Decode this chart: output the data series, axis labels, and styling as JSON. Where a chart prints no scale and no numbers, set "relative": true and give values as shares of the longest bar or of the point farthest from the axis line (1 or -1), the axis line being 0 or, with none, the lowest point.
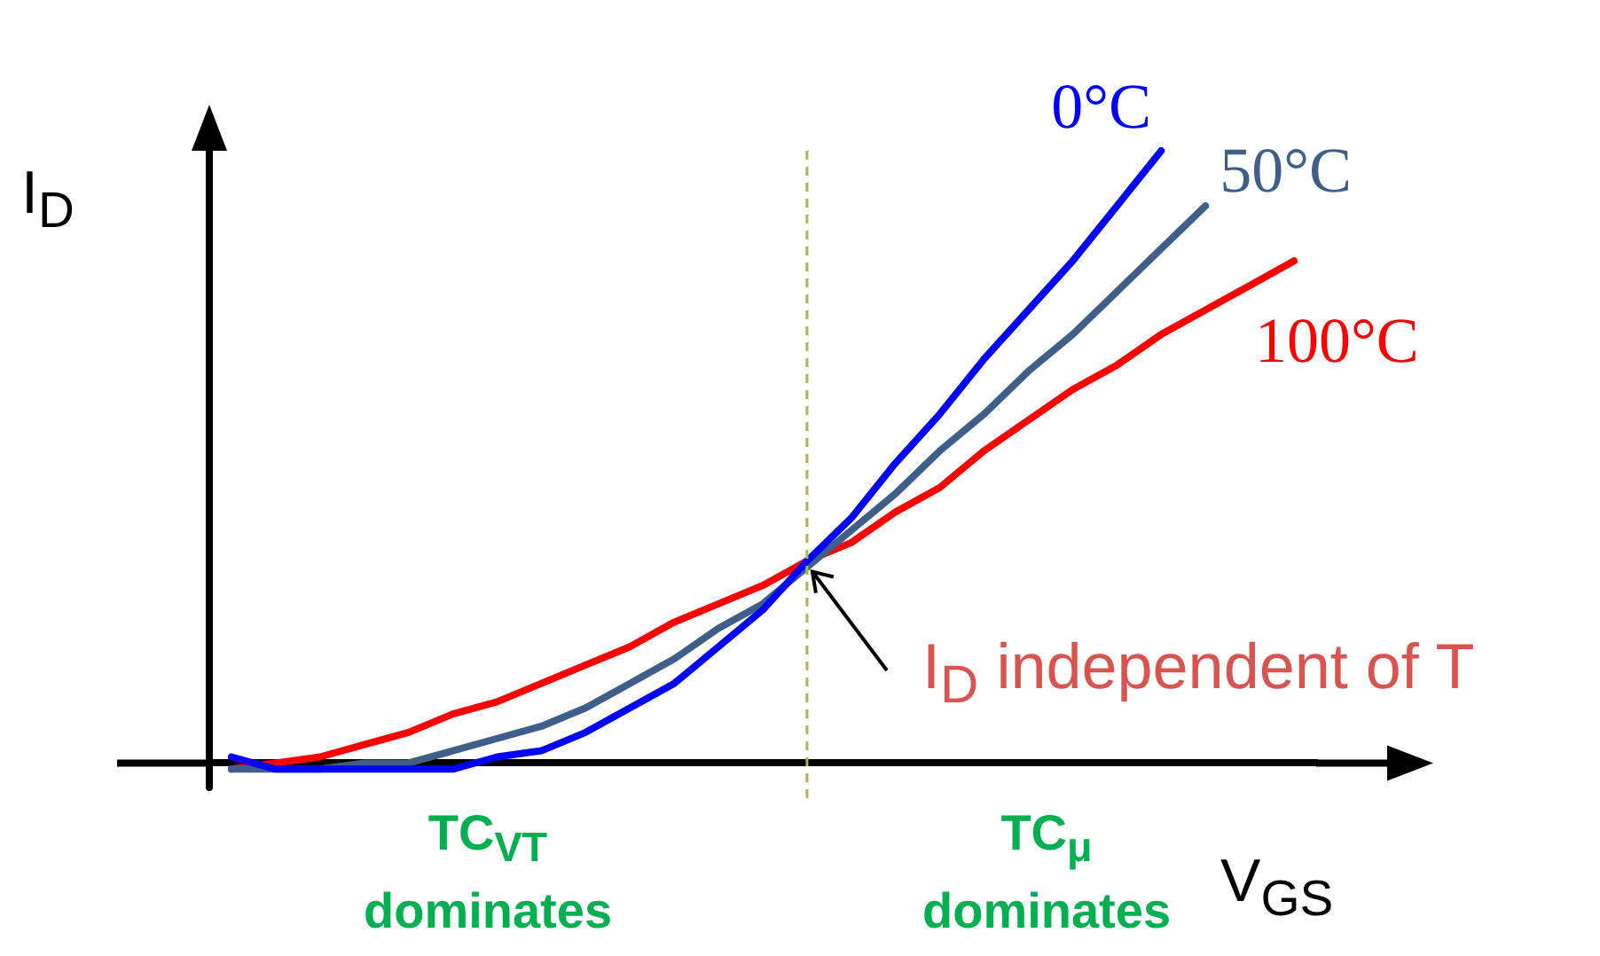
{
  "chart_data": {
    "type": "line",
    "relative": true,
    "xlabel": "V$_{GS}$",
    "ylabel": "I$_{D}$",
    "grid": false,
    "legend": false,
    "marker": "none",
    "line_style": "solid",
    "categories": [
      null,
      null,
      null,
      null,
      null,
      null,
      null,
      null,
      null,
      null,
      null,
      null,
      null,
      null,
      null,
      null,
      null,
      null,
      null,
      null,
      null,
      null,
      null,
      null,
      null
    ],
    "series": [
      {
        "name": "0°C",
        "color": "#0000ff",
        "values": [
          0.01,
          -0.01,
          -0.01,
          -0.01,
          -0.01,
          -0.01,
          0.01,
          0.02,
          0.05,
          0.09,
          0.13,
          0.19,
          0.25,
          0.33,
          0.4,
          0.49,
          0.57,
          0.66,
          0.74,
          0.82,
          0.91,
          1.0,
          null,
          null,
          null
        ]
      },
      {
        "name": "50°C",
        "color": "#3f5f8a",
        "values": [
          -0.01,
          -0.01,
          -0.01,
          0.0,
          0.0,
          0.02,
          0.04,
          0.06,
          0.09,
          0.13,
          0.17,
          0.22,
          0.26,
          0.32,
          0.38,
          0.44,
          0.51,
          0.57,
          0.64,
          0.7,
          0.77,
          0.84,
          0.91,
          null,
          null
        ]
      },
      {
        "name": "100°C",
        "color": "#ff0000",
        "values": [
          -0.01,
          0.0,
          0.01,
          0.03,
          0.05,
          0.08,
          0.1,
          0.13,
          0.16,
          0.19,
          0.23,
          0.26,
          0.29,
          0.33,
          0.36,
          0.41,
          0.45,
          0.51,
          0.56,
          0.61,
          0.65,
          0.7,
          0.74,
          0.78,
          0.82
        ]
      }
    ],
    "annotations": [
      "TC$_{VT}$ dominates",
      "TC$_{μ}$ dominates",
      "I$_{D}$ independent of T"
    ]
  }
}
